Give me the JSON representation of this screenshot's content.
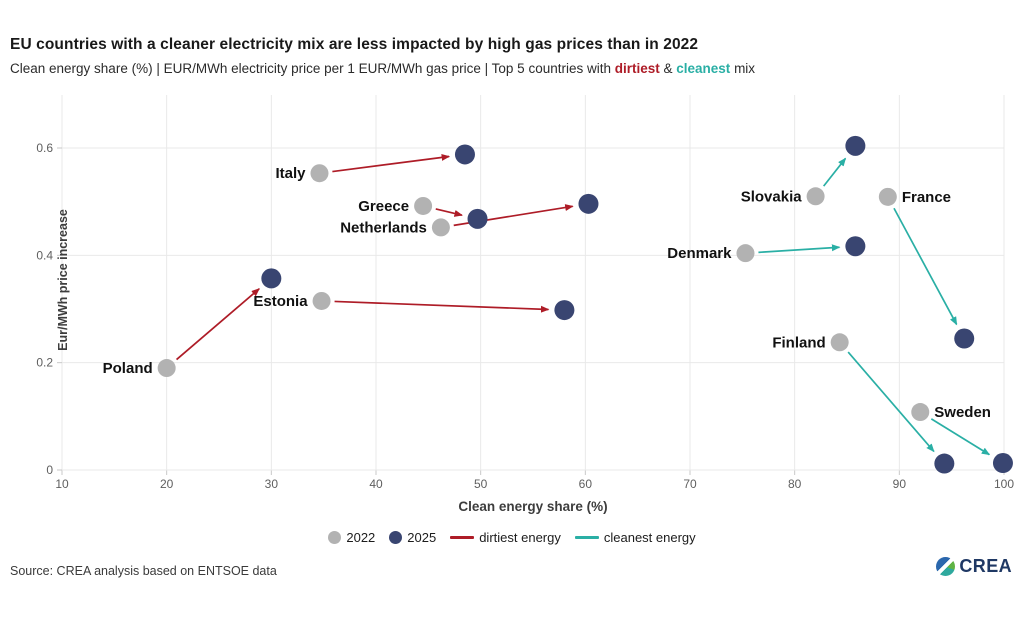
{
  "header": {
    "title": "EU countries with a cleaner electricity mix are less impacted by high gas prices than in 2022",
    "subtitle_prefix": "Clean energy share (%) | EUR/MWh electricity price per 1 EUR/MWh gas price | Top 5 countries with ",
    "subtitle_dirtiest": "dirtiest",
    "subtitle_amp": " & ",
    "subtitle_cleanest": "cleanest",
    "subtitle_suffix": " mix"
  },
  "colors": {
    "navy": "#394571",
    "gray": "#b2b2b2",
    "red": "#ae1c27",
    "teal": "#2aafa5",
    "grid": "#e9e9e9",
    "tick": "#c9c9c9",
    "tick_text": "#5f5f5f",
    "label_text": "#111111"
  },
  "chart_data": {
    "type": "scatter",
    "title": "EU countries with a cleaner electricity mix are less impacted by high gas prices than in 2022",
    "xlabel": "Clean energy share (%)",
    "ylabel": "Eur/MWh price increase",
    "xlim": [
      10,
      100
    ],
    "ylim": [
      0,
      0.7
    ],
    "x_ticks": [
      10,
      20,
      30,
      40,
      50,
      60,
      70,
      80,
      90,
      100
    ],
    "y_ticks": [
      0,
      0.2,
      0.4,
      0.6
    ],
    "grid": true,
    "series": [
      {
        "country": "Poland",
        "group": "dirtiest",
        "p2022": [
          20.0,
          0.19
        ],
        "p2025": [
          30.0,
          0.357
        ],
        "label_side": "left"
      },
      {
        "country": "Estonia",
        "group": "dirtiest",
        "p2022": [
          34.8,
          0.315
        ],
        "p2025": [
          58.0,
          0.298
        ],
        "label_side": "left"
      },
      {
        "country": "Italy",
        "group": "dirtiest",
        "p2022": [
          34.6,
          0.553
        ],
        "p2025": [
          48.5,
          0.588
        ],
        "label_side": "left"
      },
      {
        "country": "Greece",
        "group": "dirtiest",
        "p2022": [
          44.5,
          0.492
        ],
        "p2025": [
          49.7,
          0.468
        ],
        "label_side": "left"
      },
      {
        "country": "Netherlands",
        "group": "dirtiest",
        "p2022": [
          46.2,
          0.452
        ],
        "p2025": [
          60.3,
          0.496
        ],
        "label_side": "left"
      },
      {
        "country": "Slovakia",
        "group": "cleanest",
        "p2022": [
          82.0,
          0.51
        ],
        "p2025": [
          85.8,
          0.604
        ],
        "label_side": "left"
      },
      {
        "country": "Denmark",
        "group": "cleanest",
        "p2022": [
          75.3,
          0.404
        ],
        "p2025": [
          85.8,
          0.417
        ],
        "label_side": "left"
      },
      {
        "country": "France",
        "group": "cleanest",
        "p2022": [
          88.9,
          0.509
        ],
        "p2025": [
          96.2,
          0.245
        ],
        "label_side": "right"
      },
      {
        "country": "Finland",
        "group": "cleanest",
        "p2022": [
          84.3,
          0.238
        ],
        "p2025": [
          94.3,
          0.012
        ],
        "label_side": "left"
      },
      {
        "country": "Sweden",
        "group": "cleanest",
        "p2022": [
          92.0,
          0.108
        ],
        "p2025": [
          99.9,
          0.013
        ],
        "label_side": "right"
      }
    ],
    "legend": [
      {
        "label": "2022",
        "marker": "dot",
        "color": "#b2b2b2"
      },
      {
        "label": "2025",
        "marker": "dot",
        "color": "#394571"
      },
      {
        "label": "dirtiest energy",
        "marker": "line",
        "color": "#ae1c27"
      },
      {
        "label": "cleanest energy",
        "marker": "line",
        "color": "#2aafa5"
      }
    ],
    "legend_position": "bottom"
  },
  "footer": {
    "source": "Source: CREA analysis based on ENTSOE data",
    "logo_text": "CREA"
  }
}
